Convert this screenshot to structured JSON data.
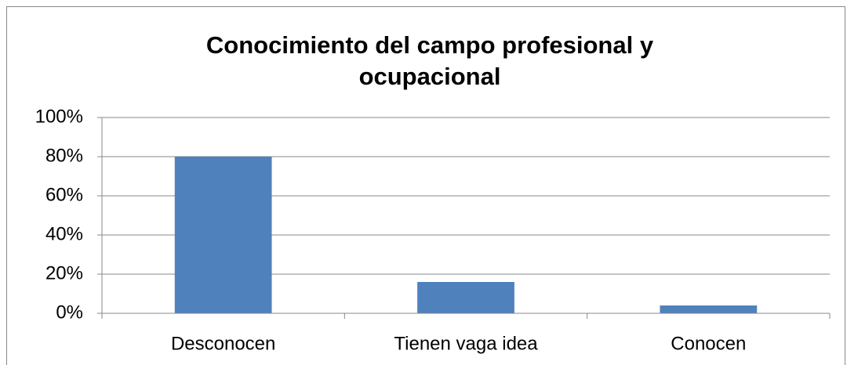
{
  "chart_data": {
    "type": "bar",
    "title": "Conocimiento del campo profesional y ocupacional",
    "categories": [
      "Desconocen",
      "Tienen vaga idea",
      "Conocen"
    ],
    "values": [
      80,
      16,
      4
    ],
    "color": "#4f81bd",
    "ylim": [
      0,
      100
    ],
    "yticks": [
      {
        "value": 0,
        "label": "0%"
      },
      {
        "value": 20,
        "label": "20%"
      },
      {
        "value": 40,
        "label": "40%"
      },
      {
        "value": 60,
        "label": "60%"
      },
      {
        "value": 80,
        "label": "80%"
      },
      {
        "value": 100,
        "label": "100%"
      }
    ],
    "grid": true
  }
}
